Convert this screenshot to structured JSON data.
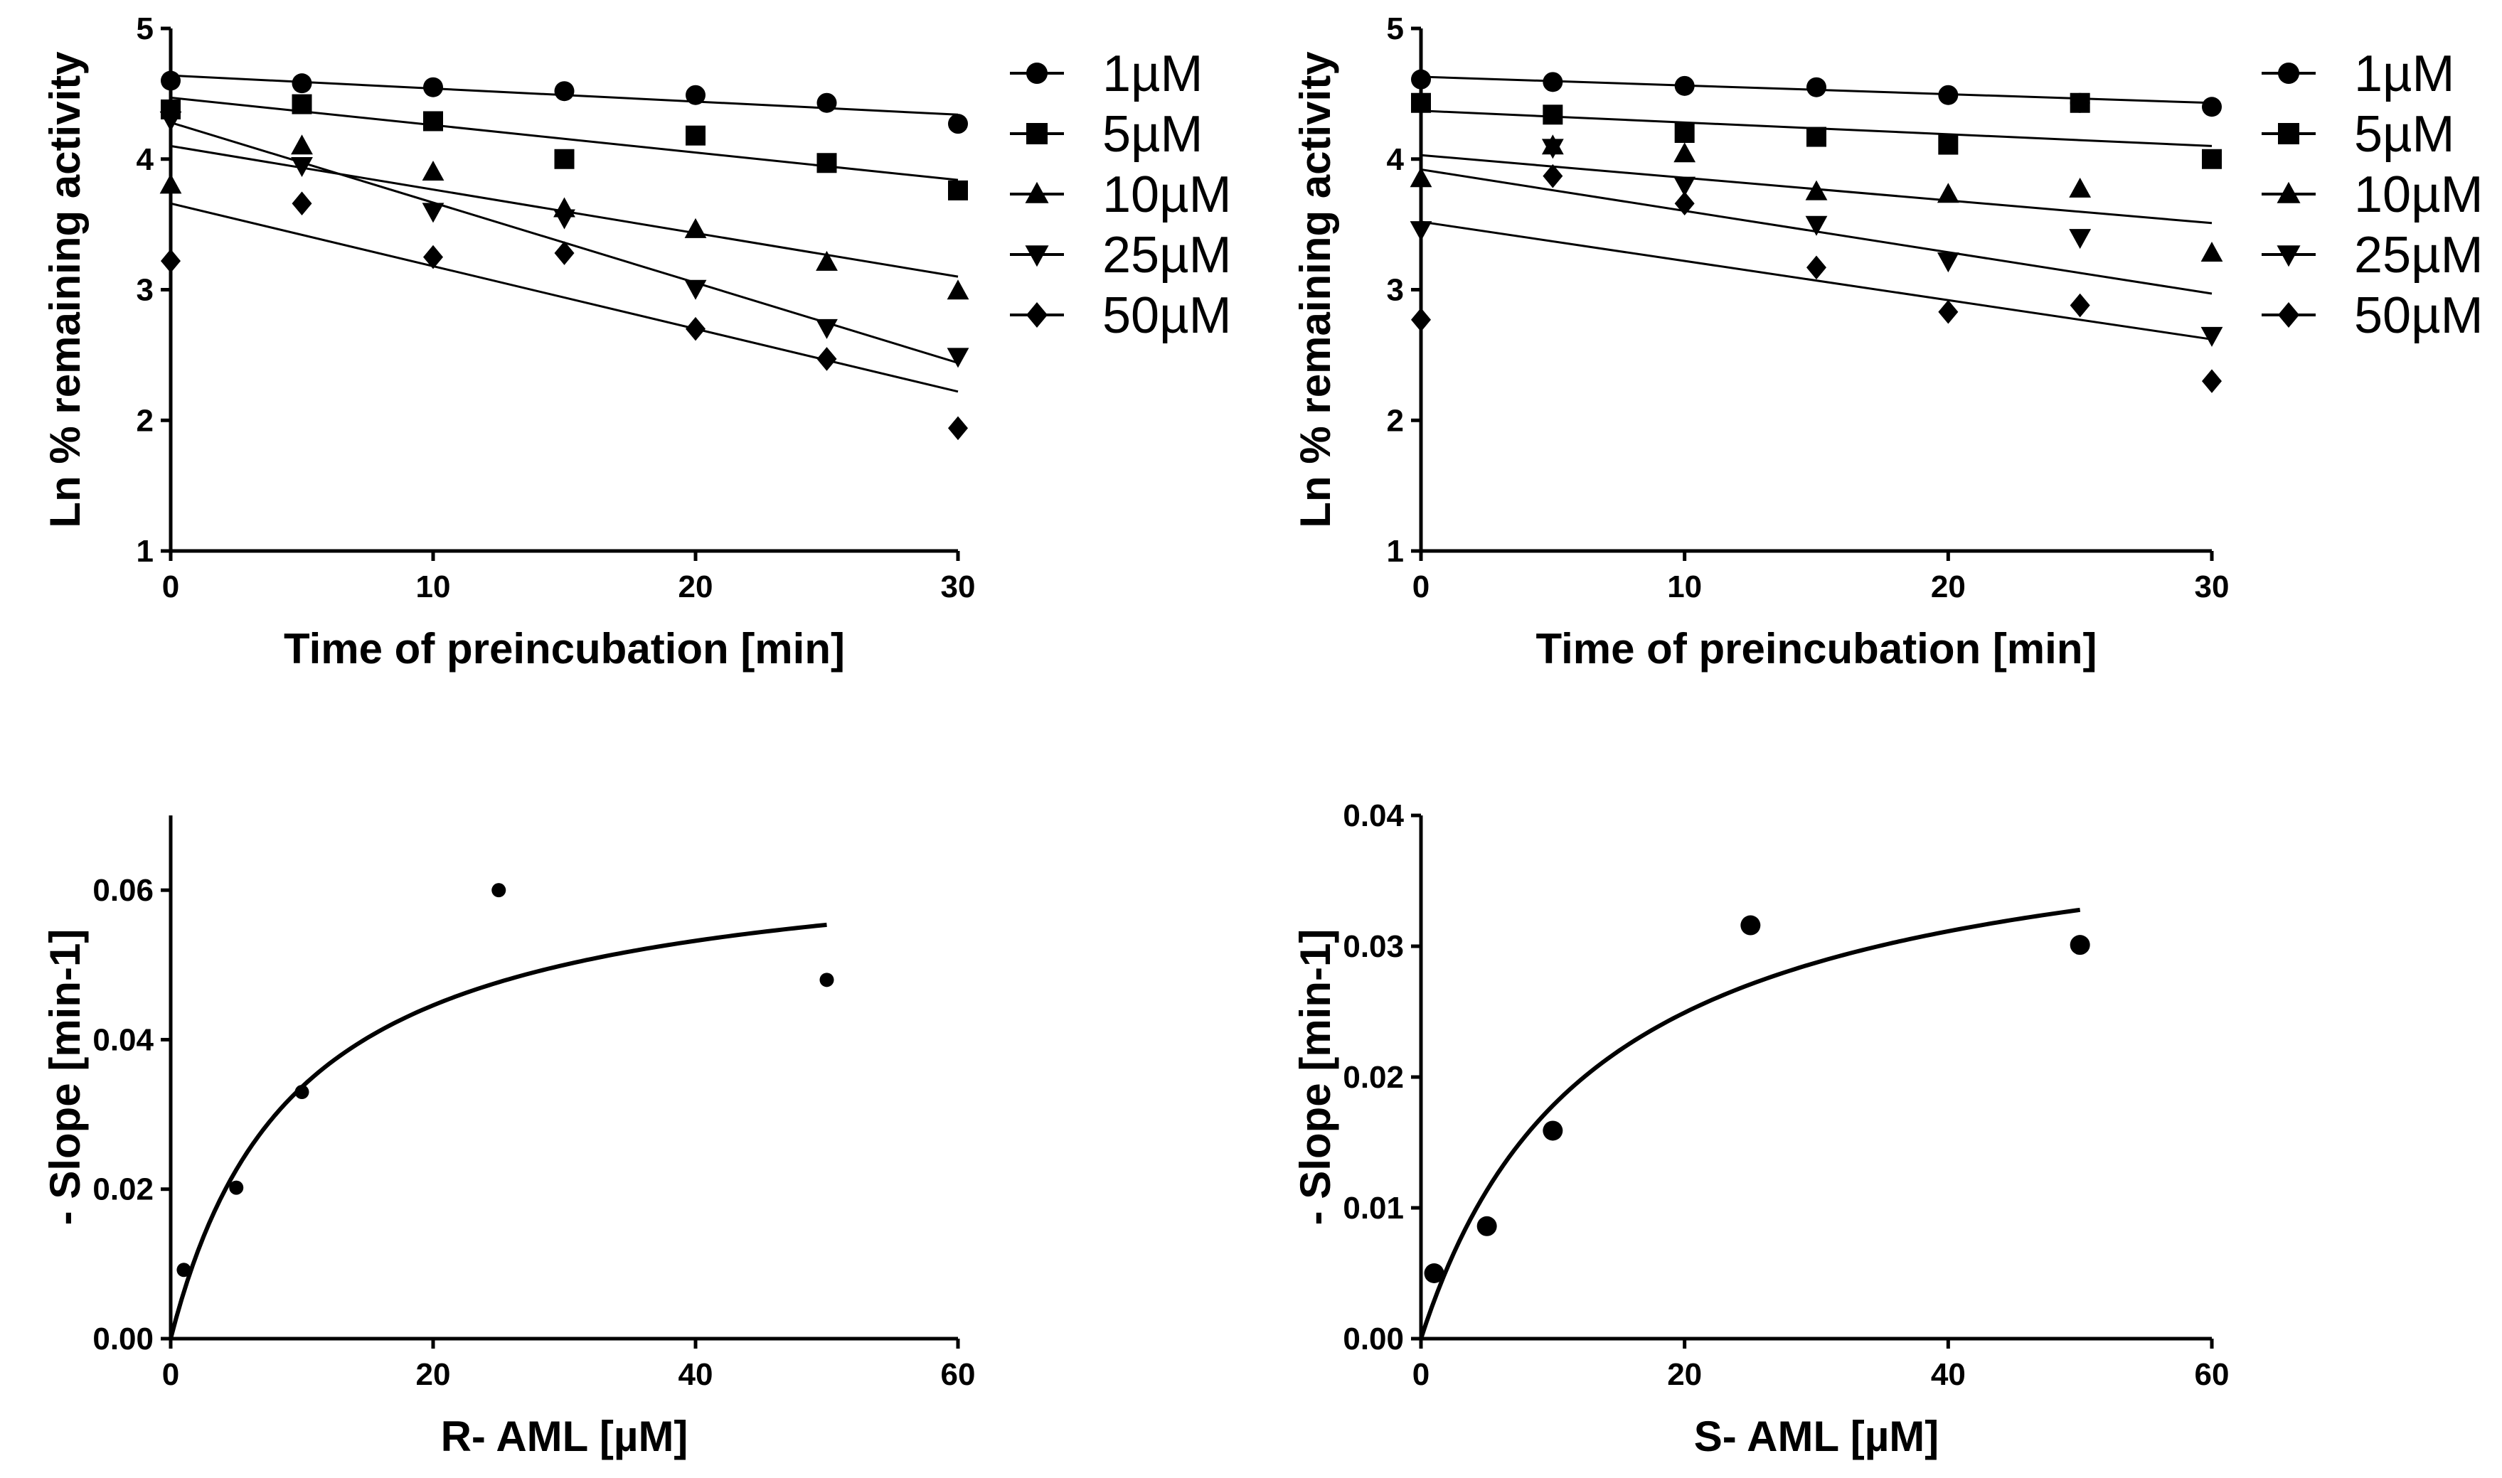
{
  "chart_data": [
    {
      "id": "top-left",
      "type": "scatter",
      "xlabel": "Time of preincubation [min]",
      "ylabel": "Ln % remaining activity",
      "xlim": [
        0,
        30
      ],
      "ylim": [
        1,
        5
      ],
      "xticks": [
        0,
        10,
        20,
        30
      ],
      "yticks": [
        1,
        2,
        3,
        4,
        5
      ],
      "xtick_labels": [
        "0",
        "10",
        "20",
        "30"
      ],
      "ytick_labels": [
        "1",
        "2",
        "3",
        "4",
        "5"
      ],
      "legend_position": "right",
      "x": [
        0,
        5,
        10,
        15,
        20,
        25,
        30
      ],
      "series": [
        {
          "name": "1µM",
          "marker": "circle",
          "values": [
            4.6,
            4.58,
            4.55,
            4.52,
            4.49,
            4.43,
            4.27
          ],
          "fit": [
            4.64,
            4.34
          ]
        },
        {
          "name": "5µM",
          "marker": "square",
          "values": [
            4.38,
            4.42,
            4.29,
            4.0,
            4.18,
            3.97,
            3.76
          ],
          "fit": [
            4.47,
            3.84
          ]
        },
        {
          "name": "10µM",
          "marker": "triangle-up",
          "values": [
            3.8,
            4.1,
            3.9,
            3.62,
            3.46,
            3.21,
            2.99
          ],
          "fit": [
            4.1,
            3.1
          ]
        },
        {
          "name": "25µM",
          "marker": "triangle-down",
          "values": [
            4.3,
            3.95,
            3.6,
            3.55,
            3.01,
            2.71,
            2.49
          ],
          "fit": [
            4.28,
            2.44
          ]
        },
        {
          "name": "50µM",
          "marker": "diamond",
          "values": [
            3.22,
            3.66,
            3.25,
            3.28,
            2.7,
            2.47,
            1.94
          ],
          "fit": [
            3.66,
            2.22
          ]
        }
      ]
    },
    {
      "id": "top-right",
      "type": "scatter",
      "xlabel": "Time of preincubation [min]",
      "ylabel": "Ln % remaining activity",
      "xlim": [
        0,
        30
      ],
      "ylim": [
        1,
        5
      ],
      "xticks": [
        0,
        10,
        20,
        30
      ],
      "yticks": [
        1,
        2,
        3,
        4,
        5
      ],
      "xtick_labels": [
        "0",
        "10",
        "20",
        "30"
      ],
      "ytick_labels": [
        "1",
        "2",
        "3",
        "4",
        "5"
      ],
      "legend_position": "right",
      "x": [
        0,
        5,
        10,
        15,
        20,
        25,
        30
      ],
      "series": [
        {
          "name": "1µM",
          "marker": "circle",
          "values": [
            4.61,
            4.59,
            4.56,
            4.55,
            4.49,
            4.43,
            4.4
          ],
          "fit": [
            4.63,
            4.43
          ]
        },
        {
          "name": "5µM",
          "marker": "square",
          "values": [
            4.43,
            4.34,
            4.2,
            4.17,
            4.11,
            4.43,
            4.0
          ],
          "fit": [
            4.37,
            4.1
          ]
        },
        {
          "name": "10µM",
          "marker": "triangle-up",
          "values": [
            3.85,
            4.1,
            4.04,
            3.75,
            3.73,
            3.77,
            3.28
          ],
          "fit": [
            4.03,
            3.51
          ]
        },
        {
          "name": "25µM",
          "marker": "triangle-down",
          "values": [
            3.46,
            4.09,
            3.8,
            3.5,
            3.22,
            3.4,
            2.65
          ],
          "fit": [
            3.92,
            2.97
          ]
        },
        {
          "name": "50µM",
          "marker": "diamond",
          "values": [
            2.77,
            3.87,
            3.66,
            3.17,
            2.83,
            2.88,
            2.3
          ],
          "fit": [
            3.52,
            2.62
          ]
        }
      ]
    },
    {
      "id": "bottom-left",
      "type": "scatter",
      "xlabel": "R- AML [µM]",
      "ylabel": "- Slope [min-1]",
      "xlim": [
        0,
        60
      ],
      "ylim": [
        0,
        0.07
      ],
      "xticks": [
        0,
        20,
        40,
        60
      ],
      "yticks": [
        0,
        0.02,
        0.04,
        0.06
      ],
      "xtick_labels": [
        "0",
        "20",
        "40",
        "60"
      ],
      "ytick_labels": [
        "0.00",
        "0.02",
        "0.04",
        "0.06"
      ],
      "marker": "circle",
      "marker_size": "small",
      "x": [
        1,
        5,
        10,
        25,
        50
      ],
      "values": [
        0.0092,
        0.0202,
        0.033,
        0.06,
        0.048
      ],
      "fit": {
        "model": "hyperbola",
        "vmax": 0.066,
        "km": 9.6,
        "x_range": [
          0,
          50
        ]
      }
    },
    {
      "id": "bottom-right",
      "type": "scatter",
      "xlabel": "S- AML [µM]",
      "ylabel": "- Slope [min-1]",
      "xlim": [
        0,
        60
      ],
      "ylim": [
        0,
        0.04
      ],
      "xticks": [
        0,
        20,
        40,
        60
      ],
      "yticks": [
        0,
        0.01,
        0.02,
        0.03,
        0.04
      ],
      "xtick_labels": [
        "0",
        "20",
        "40",
        "60"
      ],
      "ytick_labels": [
        "0.00",
        "0.01",
        "0.02",
        "0.03",
        "0.04"
      ],
      "marker": "circle",
      "marker_size": "large",
      "x": [
        1,
        5,
        10,
        25,
        50
      ],
      "values": [
        0.005,
        0.0086,
        0.0159,
        0.0316,
        0.0301
      ],
      "fit": {
        "model": "hyperbola",
        "vmax": 0.0415,
        "km": 13.3,
        "x_range": [
          0,
          50
        ]
      }
    }
  ]
}
